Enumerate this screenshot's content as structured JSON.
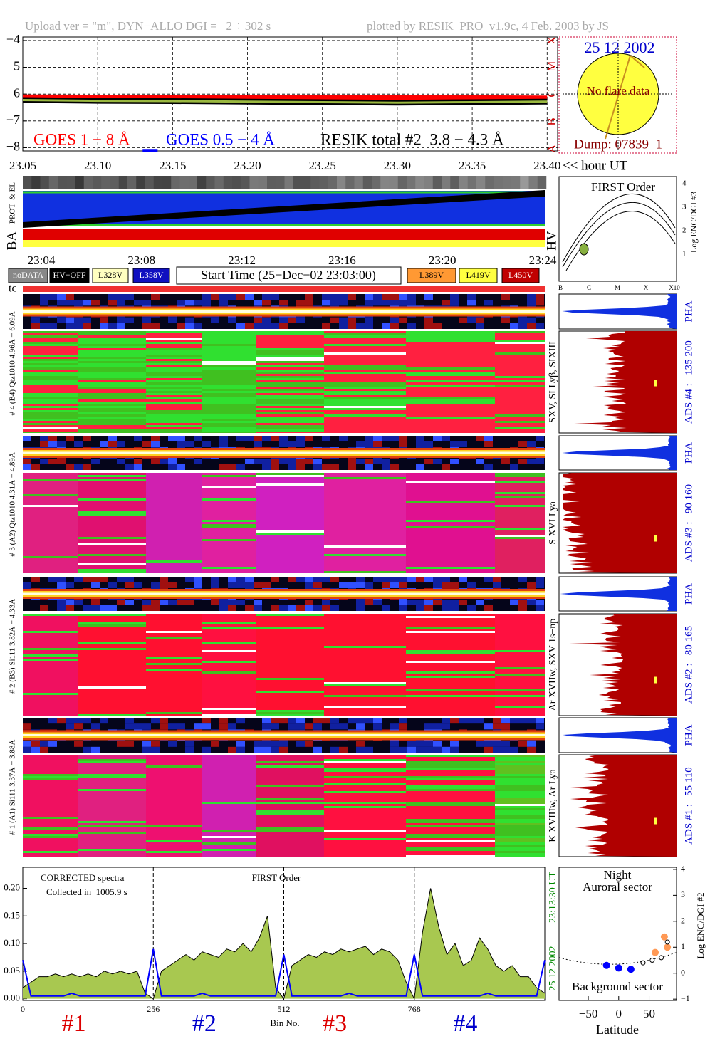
{
  "header": {
    "upload": "Upload ver = \"m\", DYN−ALLO DGI =   2 ÷ 302 s",
    "plotted": "plotted by RESIK_PRO_v1.9c, 4 Feb. 2003 by JS"
  },
  "chart_data": [
    {
      "type": "line",
      "xlim": [
        23.05,
        23.407
      ],
      "ylim": [
        -8.12,
        -3.87
      ],
      "grid": true,
      "xticks": [
        23.05,
        {
          "value": 23.1,
          "label": "23.10"
        },
        23.15,
        {
          "value": 23.2,
          "label": "23.20"
        },
        23.25,
        {
          "value": 23.3,
          "label": "23.30"
        },
        23.35,
        {
          "value": 23.4,
          "label": "23.40"
        }
      ],
      "yticks": [
        {
          "value": -4,
          "label": "−4"
        },
        {
          "value": -5,
          "label": "−5"
        },
        {
          "value": -6,
          "label": "−6"
        },
        {
          "value": -7,
          "label": "−7"
        },
        {
          "value": -8,
          "label": "−8"
        }
      ],
      "series": [
        {
          "name": "GOES 1 − 8 Å",
          "color": "#ff0000",
          "x": [
            23.05,
            23.1,
            23.15,
            23.2,
            23.25,
            23.3,
            23.35,
            23.4
          ],
          "values": [
            -6.12,
            -6.13,
            -6.13,
            -6.14,
            -6.14,
            -6.15,
            -6.15,
            -6.16
          ]
        },
        {
          "name": "GOES 0.5 − 4 Å",
          "color": "#0000ff",
          "x": [
            23.13,
            23.14
          ],
          "values": [
            -8.1,
            -8.1
          ]
        },
        {
          "name": "RESIK total #2  3.8 − 4.3 Å",
          "color": "#000000",
          "x": [
            23.05,
            23.1,
            23.15,
            23.2,
            23.25,
            23.3,
            23.35,
            23.4
          ],
          "values": [
            -6.22,
            -6.25,
            -6.26,
            -6.28,
            -6.3,
            -6.32,
            -6.3,
            -6.28
          ]
        }
      ]
    },
    {
      "type": "line",
      "title": "CORRECTED spectra",
      "subtitle": "Collected in  1005.9 s",
      "annotation": "FIRST Order",
      "x_label": "Bin No.",
      "section_labels": [
        "#1",
        "#2",
        "#3",
        "#4"
      ],
      "xlim": [
        0,
        1024
      ],
      "ylim": [
        -0.003,
        0.238
      ],
      "xticks": [
        0,
        256,
        512,
        768
      ],
      "yticks": [
        {
          "value": 0,
          "label": "0.00"
        },
        0.05,
        {
          "value": 0.1,
          "label": "0.10"
        },
        0.15,
        {
          "value": 0.2,
          "label": "0.20"
        }
      ],
      "x": [
        0,
        16,
        32,
        48,
        64,
        80,
        96,
        112,
        128,
        144,
        160,
        176,
        192,
        208,
        224,
        240,
        256,
        272,
        288,
        304,
        320,
        336,
        352,
        368,
        384,
        400,
        416,
        432,
        448,
        464,
        480,
        496,
        512,
        528,
        544,
        560,
        576,
        592,
        608,
        624,
        640,
        656,
        672,
        688,
        704,
        720,
        736,
        752,
        768,
        784,
        800,
        816,
        832,
        848,
        864,
        880,
        896,
        912,
        928,
        944,
        960,
        976,
        992,
        1008,
        1024
      ],
      "series": [
        {
          "color": "#a8c850",
          "values": [
            0.02,
            0.03,
            0.04,
            0.04,
            0.045,
            0.04,
            0.045,
            0.04,
            0.045,
            0.04,
            0.05,
            0.045,
            0.05,
            0.045,
            0.05,
            0.01,
            0,
            0.05,
            0.06,
            0.07,
            0.08,
            0.07,
            0.085,
            0.08,
            0.075,
            0.09,
            0.085,
            0.1,
            0.085,
            0.11,
            0.15,
            0.02,
            0,
            0.06,
            0.07,
            0.08,
            0.075,
            0.085,
            0.08,
            0.09,
            0.085,
            0.09,
            0.095,
            0.08,
            0.09,
            0.085,
            0.07,
            0.03,
            0,
            0.12,
            0.2,
            0.13,
            0.08,
            0.1,
            0.06,
            0.07,
            0.11,
            0.09,
            0.06,
            0.05,
            0.06,
            0.04,
            0.04,
            0.02,
            0.01
          ]
        },
        {
          "color": "#0000ff",
          "values": [
            0.07,
            0.005,
            0.005,
            0.005,
            0.005,
            0.005,
            0.01,
            0.005,
            0.005,
            0.005,
            0.005,
            0.005,
            0.005,
            0.005,
            0.005,
            0.005,
            0.09,
            0.005,
            0.005,
            0.005,
            0.005,
            0.005,
            0.01,
            0.005,
            0.005,
            0.005,
            0.005,
            0.005,
            0.005,
            0.005,
            0.005,
            0.005,
            0.08,
            0.005,
            0.005,
            0.005,
            0.005,
            0.005,
            0.005,
            0.005,
            0.01,
            0.005,
            0.005,
            0.005,
            0.005,
            0.005,
            0.005,
            0.005,
            0.08,
            0.005,
            0.005,
            0.005,
            0.005,
            0.005,
            0.005,
            0.005,
            0.005,
            0.01,
            0.005,
            0.005,
            0.005,
            0.005,
            0.005,
            0.005,
            0.07
          ]
        }
      ]
    },
    {
      "type": "scatter",
      "title": "Night",
      "subtitle": "Auroral sector",
      "annotation": "Background sector",
      "x_label": "Latitude",
      "y_label": "Log ENC/DGI #2",
      "xlim": [
        -98,
        95
      ],
      "ylim": [
        -1.05,
        4.08
      ],
      "xticks": [
        {
          "value": -50,
          "label": "−50"
        },
        0,
        50
      ],
      "yticks": [
        {
          "value": -1,
          "label": "−1"
        },
        0,
        1,
        2,
        3,
        4
      ],
      "series": [
        {
          "color": "#0000ff",
          "x": [
            -20,
            0,
            20
          ],
          "values": [
            0.3,
            0.2,
            0.15
          ]
        },
        {
          "color": "#ff9955",
          "x": [
            60,
            75,
            80
          ],
          "values": [
            0.8,
            1.4,
            1.0
          ]
        },
        {
          "color": "#ffffff",
          "x": [
            40,
            55,
            70,
            80
          ],
          "values": [
            0.4,
            0.5,
            0.6,
            1.2
          ]
        }
      ]
    }
  ],
  "sun": {
    "date": "25 12 2002",
    "note": "No flare data",
    "dump": "Dump: 07839_1"
  },
  "goes_classes": [
    "X",
    "M",
    "C",
    "B",
    "A"
  ],
  "hour_label": "<< hour UT",
  "middle": {
    "ba": "BA",
    "prot": "PROT  & EL",
    "hv": "HV",
    "times": [
      "23:04",
      "23:08",
      "23:12",
      "23:16",
      "23:20",
      "23:24"
    ]
  },
  "buttons": [
    "noDATA",
    "HV−OFF",
    "L328V",
    "L358V",
    "L389V",
    "L419V",
    "L450V"
  ],
  "start_time": "Start Time (25−Dec−02 23:03:00)",
  "first_order": {
    "title": "FIRST Order",
    "axis": "Log ENC/DGI #3",
    "yticks": [
      "1",
      "2",
      "3",
      "4"
    ],
    "xticks": [
      "B",
      "C",
      "M",
      "X",
      "X10"
    ]
  },
  "tc": "tc",
  "pha": "PHA",
  "channels": [
    {
      "label": "# 4 (B4) Qtz1010 4.96Å − 6.09Å",
      "lines": "SXV, SI Lyβ, SIXIII",
      "ads": "ADS #4 :   135 200"
    },
    {
      "label": "# 3 (A2) Qtz1010 4.31Å − 4.89Å",
      "lines": "S XVI Lya",
      "ads": "ADS #3 :   90 160"
    },
    {
      "label": "# 2 (B3) Si111 3.82Å − 4.33Å",
      "lines": "Ar XVIIw, SXV 1s−np",
      "ads": "ADS #2 :   80 165"
    },
    {
      "label": "# 1 (A1) Si111 3.37Å − 3.88Å",
      "lines": "K XVIIIw, Ar Lya",
      "ads": "ADS #1 :   55 110"
    }
  ],
  "spectrum_stamp": {
    "time": "23:13:30 UT",
    "date": "25 12 2002"
  }
}
